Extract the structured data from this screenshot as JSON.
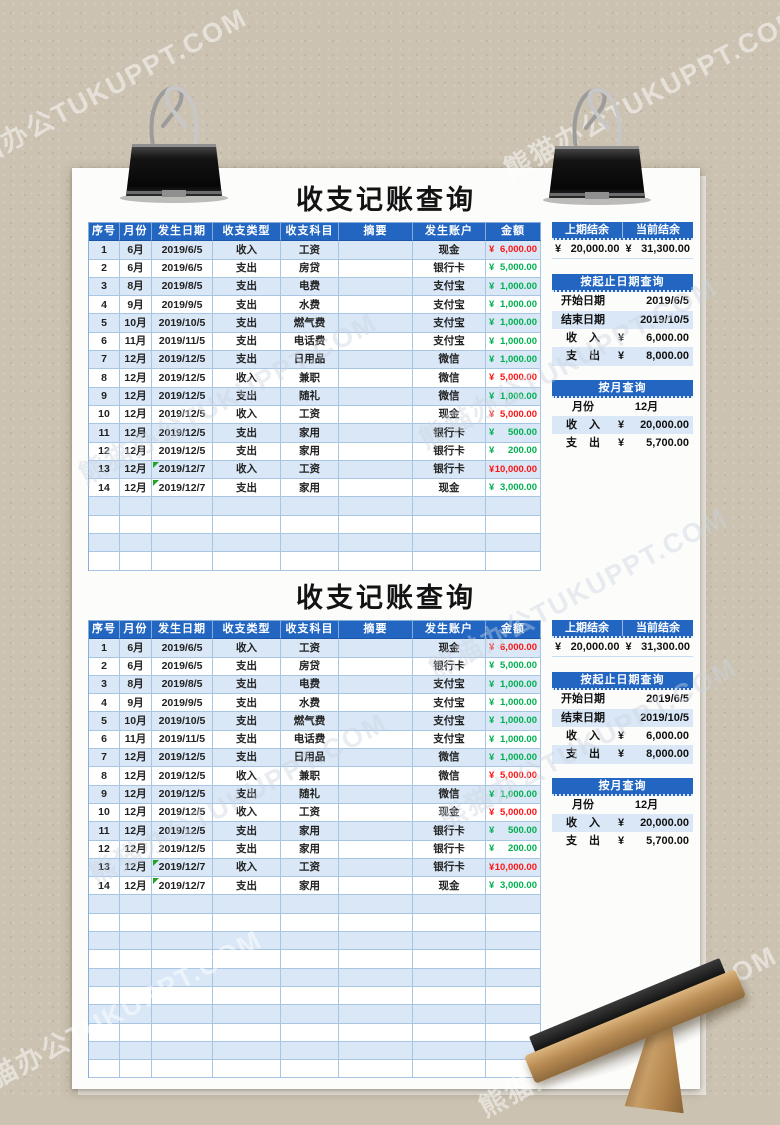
{
  "title": "收支记账查询",
  "currency": "¥",
  "watermark": {
    "text": "熊猫办公TUKUPPT.COM"
  },
  "colors": {
    "header_blue": "#2266c2",
    "row_stripe": "#d9e7f6",
    "income_red": "#ff1414",
    "expense_green": "#00b050",
    "background_tan": "#cbc2b1"
  },
  "table": {
    "headers": [
      "序号",
      "月份",
      "发生日期",
      "收支类型",
      "收支科目",
      "摘要",
      "发生账户",
      "金额"
    ],
    "col_keys": [
      "no",
      "month",
      "date",
      "type",
      "subject",
      "summary",
      "account",
      "amount"
    ],
    "rows": [
      {
        "no": "1",
        "month": "6月",
        "date": "2019/6/5",
        "type": "收入",
        "subject": "工资",
        "summary": "",
        "account": "现金",
        "amount": "6,000.00",
        "kind": "income",
        "flag": false
      },
      {
        "no": "2",
        "month": "6月",
        "date": "2019/6/5",
        "type": "支出",
        "subject": "房贷",
        "summary": "",
        "account": "银行卡",
        "amount": "5,000.00",
        "kind": "expense",
        "flag": false
      },
      {
        "no": "3",
        "month": "8月",
        "date": "2019/8/5",
        "type": "支出",
        "subject": "电费",
        "summary": "",
        "account": "支付宝",
        "amount": "1,000.00",
        "kind": "expense",
        "flag": false
      },
      {
        "no": "4",
        "month": "9月",
        "date": "2019/9/5",
        "type": "支出",
        "subject": "水费",
        "summary": "",
        "account": "支付宝",
        "amount": "1,000.00",
        "kind": "expense",
        "flag": false
      },
      {
        "no": "5",
        "month": "10月",
        "date": "2019/10/5",
        "type": "支出",
        "subject": "燃气费",
        "summary": "",
        "account": "支付宝",
        "amount": "1,000.00",
        "kind": "expense",
        "flag": false
      },
      {
        "no": "6",
        "month": "11月",
        "date": "2019/11/5",
        "type": "支出",
        "subject": "电话费",
        "summary": "",
        "account": "支付宝",
        "amount": "1,000.00",
        "kind": "expense",
        "flag": false
      },
      {
        "no": "7",
        "month": "12月",
        "date": "2019/12/5",
        "type": "支出",
        "subject": "日用品",
        "summary": "",
        "account": "微信",
        "amount": "1,000.00",
        "kind": "expense",
        "flag": false
      },
      {
        "no": "8",
        "month": "12月",
        "date": "2019/12/5",
        "type": "收入",
        "subject": "兼职",
        "summary": "",
        "account": "微信",
        "amount": "5,000.00",
        "kind": "income",
        "flag": false
      },
      {
        "no": "9",
        "month": "12月",
        "date": "2019/12/5",
        "type": "支出",
        "subject": "随礼",
        "summary": "",
        "account": "微信",
        "amount": "1,000.00",
        "kind": "expense",
        "flag": false
      },
      {
        "no": "10",
        "month": "12月",
        "date": "2019/12/5",
        "type": "收入",
        "subject": "工资",
        "summary": "",
        "account": "现金",
        "amount": "5,000.00",
        "kind": "income",
        "flag": false
      },
      {
        "no": "11",
        "month": "12月",
        "date": "2019/12/5",
        "type": "支出",
        "subject": "家用",
        "summary": "",
        "account": "银行卡",
        "amount": "500.00",
        "kind": "expense",
        "flag": false
      },
      {
        "no": "12",
        "month": "12月",
        "date": "2019/12/5",
        "type": "支出",
        "subject": "家用",
        "summary": "",
        "account": "银行卡",
        "amount": "200.00",
        "kind": "expense",
        "flag": false
      },
      {
        "no": "13",
        "month": "12月",
        "date": "2019/12/7",
        "type": "收入",
        "subject": "工资",
        "summary": "",
        "account": "银行卡",
        "amount": "10,000.00",
        "kind": "income",
        "flag": true
      },
      {
        "no": "14",
        "month": "12月",
        "date": "2019/12/7",
        "type": "支出",
        "subject": "家用",
        "summary": "",
        "account": "现金",
        "amount": "3,000.00",
        "kind": "expense",
        "flag": true
      }
    ]
  },
  "side_panel": {
    "balance": {
      "prev_label": "上期结余",
      "curr_label": "当前结余",
      "prev_value": "20,000.00",
      "curr_value": "31,300.00"
    },
    "date_query": {
      "title": "按起止日期查询",
      "start_label": "开始日期",
      "start_value": "2019/6/5",
      "end_label": "结束日期",
      "end_value": "2019/10/5",
      "income_label": "收 入",
      "income_value": "6,000.00",
      "expense_label": "支 出",
      "expense_value": "8,000.00"
    },
    "month_query": {
      "title": "按月查询",
      "month_label": "月份",
      "month_value": "12月",
      "income_label": "收 入",
      "income_value": "20,000.00",
      "expense_label": "支 出",
      "expense_value": "5,700.00"
    }
  },
  "sheets": [
    {
      "empty_rows": 4
    },
    {
      "empty_rows": 10
    }
  ]
}
